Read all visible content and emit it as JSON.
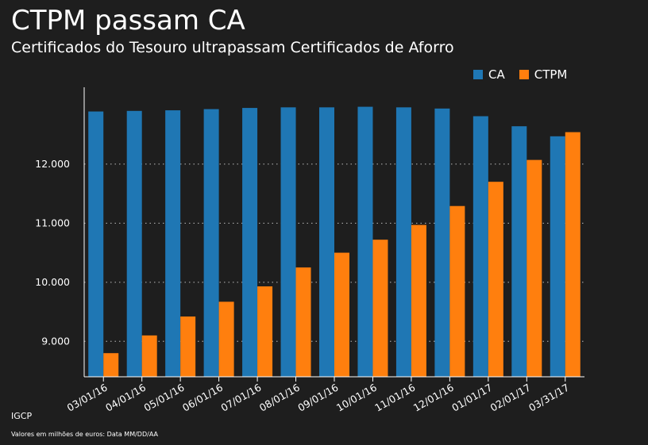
{
  "title": "CTPM passam CA",
  "subtitle": "Certificados do Tesouro ultrapassam Certificados de Aforro",
  "source": "IGCP",
  "note": "Valores em milhões de euros: Data MM/DD/AA",
  "colors": {
    "background": "#1e1e1e",
    "ca": "#1f77b4",
    "ctpm": "#ff7f0e",
    "axis": "#ffffff",
    "grid": "#bbbbbb"
  },
  "chart_data": {
    "type": "bar",
    "categories": [
      "03/01/16",
      "04/01/16",
      "05/01/16",
      "06/01/16",
      "07/01/16",
      "08/01/16",
      "09/01/16",
      "10/01/16",
      "11/01/16",
      "12/01/16",
      "01/01/17",
      "02/01/17",
      "03/31/17"
    ],
    "series": [
      {
        "name": "CA",
        "values": [
          12890,
          12900,
          12910,
          12930,
          12950,
          12960,
          12960,
          12970,
          12960,
          12940,
          12810,
          12640,
          12470
        ]
      },
      {
        "name": "CTPM",
        "values": [
          8800,
          9100,
          9420,
          9670,
          9930,
          10250,
          10500,
          10720,
          10970,
          11290,
          11700,
          12070,
          12540
        ]
      }
    ],
    "yticks": [
      9000,
      10000,
      11000,
      12000
    ],
    "ytick_labels": [
      "9.000",
      "10.000",
      "11.000",
      "12.000"
    ],
    "ylim": [
      8400,
      13300
    ],
    "grid": "horizontal dotted",
    "legend_position": "top-right"
  }
}
